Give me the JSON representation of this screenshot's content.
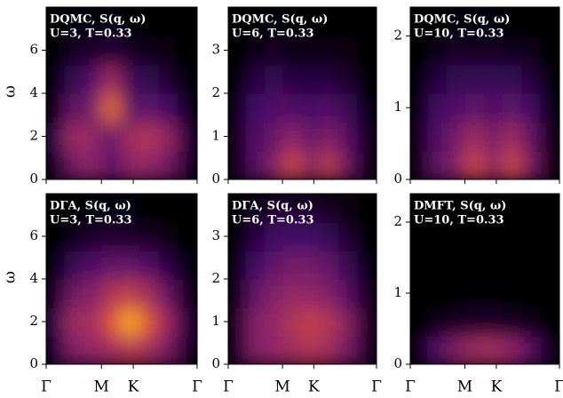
{
  "chart_data": [
    {
      "type": "heatmap",
      "title": "DQMC, S(q, ω)",
      "subtitle": "U=3, T=0.33",
      "ylabel": "ω",
      "colormap": "inferno",
      "xlim": [
        0,
        1
      ],
      "xticks": [
        0,
        0.366,
        0.577,
        1
      ],
      "xtick_labels": false,
      "ylim": [
        0,
        8
      ],
      "yticks": [
        0,
        2,
        4,
        6
      ],
      "z": [
        [
          0.1,
          0.4,
          0.5,
          0.3,
          0.5,
          0.5,
          0.4,
          0.1
        ],
        [
          0.2,
          0.55,
          0.5,
          0.35,
          0.55,
          0.6,
          0.5,
          0.15
        ],
        [
          0.05,
          0.35,
          0.4,
          0.8,
          0.3,
          0.35,
          0.25,
          0.05
        ],
        [
          0.02,
          0.2,
          0.3,
          0.55,
          0.2,
          0.2,
          0.1,
          0.02
        ],
        [
          0,
          0.08,
          0.1,
          0.15,
          0.08,
          0.05,
          0.03,
          0
        ],
        [
          0,
          0.02,
          0.02,
          0.02,
          0,
          0,
          0,
          0
        ]
      ]
    },
    {
      "type": "heatmap",
      "title": "DQMC, S(q, ω)",
      "subtitle": "U=6, T=0.33",
      "colormap": "inferno",
      "xlim": [
        0,
        1
      ],
      "xticks": [
        0,
        0.366,
        0.577,
        1
      ],
      "xtick_labels": false,
      "ylim": [
        0,
        4
      ],
      "yticks": [
        0,
        1,
        2,
        3
      ],
      "z": [
        [
          0.05,
          0.3,
          0.45,
          0.7,
          0.45,
          0.65,
          0.35,
          0.05
        ],
        [
          0.05,
          0.3,
          0.35,
          0.5,
          0.35,
          0.45,
          0.3,
          0.05
        ],
        [
          0.02,
          0.25,
          0.3,
          0.3,
          0.25,
          0.3,
          0.2,
          0.02
        ],
        [
          0,
          0.15,
          0.2,
          0.15,
          0.15,
          0.15,
          0.1,
          0
        ],
        [
          0,
          0.05,
          0.08,
          0.05,
          0.05,
          0.05,
          0.03,
          0
        ],
        [
          0,
          0,
          0.02,
          0,
          0,
          0,
          0,
          0
        ]
      ]
    },
    {
      "type": "heatmap",
      "title": "DQMC, S(q, ω)",
      "subtitle": "U=10, T=0.33",
      "colormap": "inferno",
      "xlim": [
        0,
        1
      ],
      "xticks": [
        0,
        0.366,
        0.577,
        1
      ],
      "xtick_labels": false,
      "ylim": [
        0,
        2.4
      ],
      "yticks": [
        0,
        1,
        2
      ],
      "z": [
        [
          0.05,
          0.35,
          0.45,
          0.7,
          0.45,
          0.7,
          0.4,
          0.05
        ],
        [
          0.05,
          0.3,
          0.4,
          0.55,
          0.4,
          0.55,
          0.35,
          0.05
        ],
        [
          0.02,
          0.25,
          0.3,
          0.35,
          0.3,
          0.35,
          0.25,
          0.02
        ],
        [
          0,
          0.15,
          0.2,
          0.2,
          0.2,
          0.2,
          0.15,
          0
        ],
        [
          0,
          0.05,
          0.08,
          0.08,
          0.08,
          0.06,
          0.05,
          0
        ],
        [
          0,
          0,
          0.02,
          0.02,
          0.02,
          0,
          0,
          0
        ]
      ]
    },
    {
      "type": "heatmap",
      "title": "DΓA, S(q, ω)",
      "subtitle": "U=3, T=0.33",
      "ylabel": "ω",
      "colormap": "inferno",
      "xlim": [
        0,
        1
      ],
      "xticks": [
        {
          "value": 0,
          "label": "Γ"
        },
        {
          "value": 0.366,
          "label": "M"
        },
        {
          "value": 0.577,
          "label": "K"
        },
        {
          "value": 1,
          "label": "Γ"
        }
      ],
      "ylim": [
        0,
        8
      ],
      "yticks": [
        0,
        2,
        4,
        6
      ],
      "z": [
        [
          0.15,
          0.45,
          0.5,
          0.55,
          0.6,
          0.55,
          0.4,
          0.1
        ],
        [
          0.2,
          0.55,
          0.55,
          0.75,
          0.9,
          0.75,
          0.5,
          0.15
        ],
        [
          0.1,
          0.4,
          0.45,
          0.6,
          0.65,
          0.55,
          0.35,
          0.05
        ],
        [
          0.02,
          0.2,
          0.3,
          0.35,
          0.35,
          0.3,
          0.15,
          0.02
        ],
        [
          0,
          0.05,
          0.1,
          0.12,
          0.1,
          0.08,
          0.03,
          0
        ],
        [
          0,
          0,
          0.02,
          0.02,
          0.02,
          0,
          0,
          0
        ]
      ]
    },
    {
      "type": "heatmap",
      "title": "DΓA, S(q, ω)",
      "subtitle": "U=6, T=0.33",
      "colormap": "inferno",
      "xlim": [
        0,
        1
      ],
      "xticks": [
        {
          "value": 0,
          "label": "Γ"
        },
        {
          "value": 0.366,
          "label": "M"
        },
        {
          "value": 0.577,
          "label": "K"
        },
        {
          "value": 1,
          "label": "Γ"
        }
      ],
      "ylim": [
        0,
        4
      ],
      "yticks": [
        0,
        1,
        2,
        3
      ],
      "z": [
        [
          0.1,
          0.45,
          0.5,
          0.55,
          0.6,
          0.55,
          0.4,
          0.1
        ],
        [
          0.1,
          0.45,
          0.5,
          0.6,
          0.65,
          0.6,
          0.45,
          0.1
        ],
        [
          0.05,
          0.35,
          0.45,
          0.5,
          0.5,
          0.45,
          0.3,
          0.05
        ],
        [
          0.02,
          0.25,
          0.35,
          0.4,
          0.4,
          0.35,
          0.2,
          0.02
        ],
        [
          0,
          0.15,
          0.25,
          0.25,
          0.25,
          0.2,
          0.1,
          0
        ],
        [
          0,
          0.05,
          0.1,
          0.1,
          0.1,
          0.08,
          0.03,
          0
        ]
      ]
    },
    {
      "type": "heatmap",
      "title": "DMFT, S(q, ω)",
      "subtitle": "U=10, T=0.33",
      "colormap": "inferno",
      "xlim": [
        0,
        1
      ],
      "xticks": [
        {
          "value": 0,
          "label": "Γ"
        },
        {
          "value": 0.366,
          "label": "M"
        },
        {
          "value": 0.577,
          "label": "K"
        },
        {
          "value": 1,
          "label": "Γ"
        }
      ],
      "ylim": [
        0,
        2.4
      ],
      "yticks": [
        0,
        1,
        2
      ],
      "z": [
        [
          0.05,
          0.3,
          0.45,
          0.55,
          0.55,
          0.5,
          0.3,
          0.05
        ],
        [
          0,
          0.05,
          0.08,
          0.1,
          0.1,
          0.08,
          0.05,
          0
        ],
        [
          0,
          0,
          0,
          0,
          0,
          0,
          0,
          0
        ],
        [
          0,
          0,
          0,
          0,
          0,
          0,
          0,
          0
        ],
        [
          0,
          0,
          0,
          0,
          0,
          0,
          0,
          0
        ],
        [
          0,
          0,
          0,
          0,
          0,
          0,
          0,
          0
        ]
      ]
    }
  ]
}
